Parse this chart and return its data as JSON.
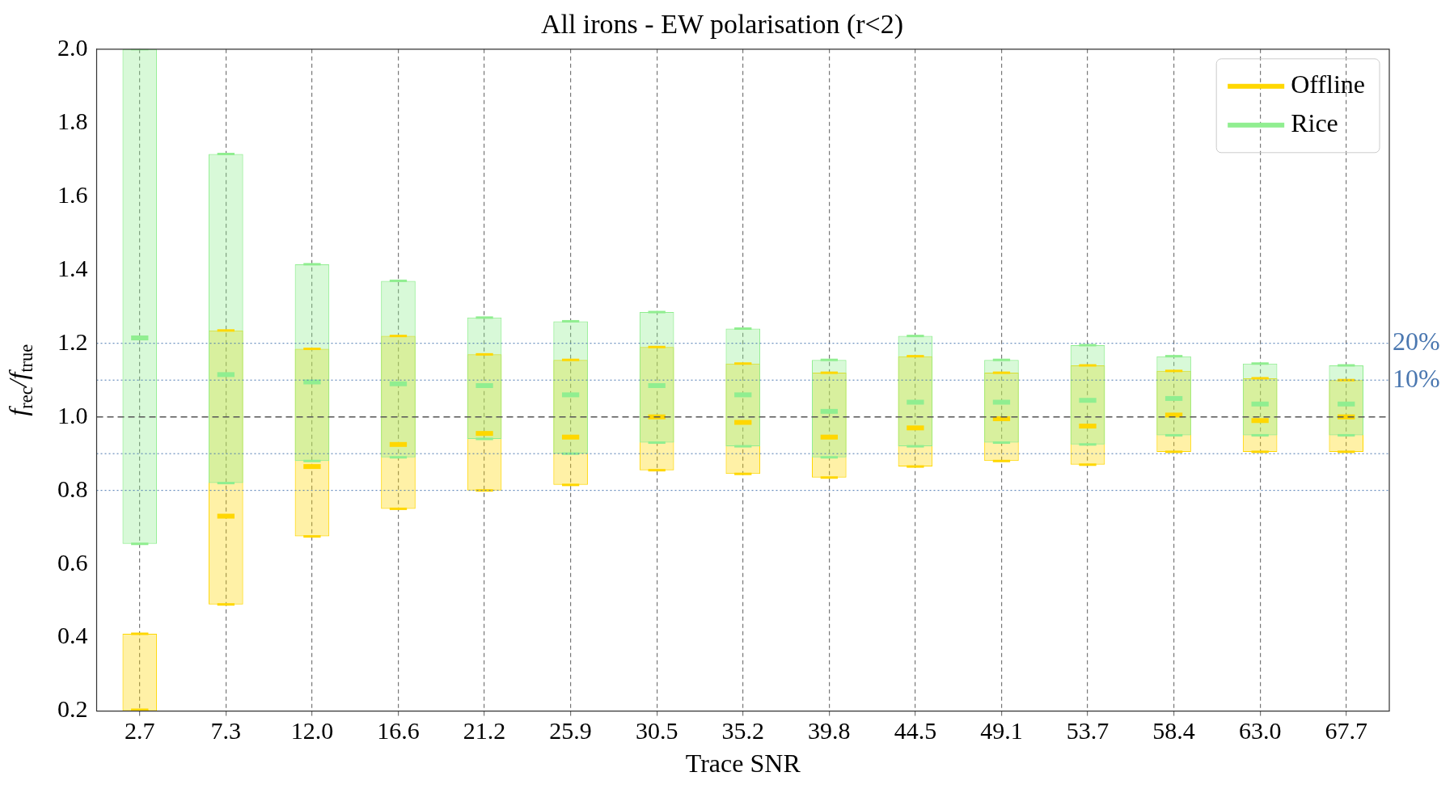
{
  "chart_data": {
    "type": "box",
    "title": "All irons - EW polarisation (r<2)",
    "xlabel": "Trace SNR",
    "ylabel": "f$_{rec}$/f$_{true}$",
    "categories": [
      "2.7",
      "7.3",
      "12.0",
      "16.6",
      "21.2",
      "25.9",
      "30.5",
      "35.2",
      "39.8",
      "44.5",
      "49.1",
      "53.7",
      "58.4",
      "63.0",
      "67.7"
    ],
    "ylim": [
      0.2,
      2.0
    ],
    "yticks": [
      0.2,
      0.4,
      0.6,
      0.8,
      {
        "value": 1.0,
        "label": "1.0"
      },
      1.2,
      1.4,
      1.6,
      1.8,
      {
        "value": 2.0,
        "label": "2.0"
      }
    ],
    "grid": "x",
    "legend": "top right",
    "series": [
      {
        "name": "Offline",
        "color": "#ffd700",
        "boxes": [
          {
            "low": 0.2,
            "q1": 0.2,
            "median": 0.2,
            "q3": 0.41,
            "high": 0.41
          },
          {
            "low": 0.49,
            "q1": 0.49,
            "median": 0.73,
            "q3": 1.235,
            "high": 1.235
          },
          {
            "low": 0.675,
            "q1": 0.675,
            "median": 0.865,
            "q3": 1.185,
            "high": 1.185
          },
          {
            "low": 0.75,
            "q1": 0.75,
            "median": 0.925,
            "q3": 1.22,
            "high": 1.22
          },
          {
            "low": 0.8,
            "q1": 0.8,
            "median": 0.955,
            "q3": 1.17,
            "high": 1.17
          },
          {
            "low": 0.815,
            "q1": 0.815,
            "median": 0.945,
            "q3": 1.155,
            "high": 1.155
          },
          {
            "low": 0.855,
            "q1": 0.855,
            "median": 1.0,
            "q3": 1.19,
            "high": 1.19
          },
          {
            "low": 0.845,
            "q1": 0.845,
            "median": 0.985,
            "q3": 1.145,
            "high": 1.145
          },
          {
            "low": 0.835,
            "q1": 0.835,
            "median": 0.945,
            "q3": 1.12,
            "high": 1.12
          },
          {
            "low": 0.865,
            "q1": 0.865,
            "median": 0.97,
            "q3": 1.165,
            "high": 1.165
          },
          {
            "low": 0.88,
            "q1": 0.88,
            "median": 0.995,
            "q3": 1.12,
            "high": 1.12
          },
          {
            "low": 0.87,
            "q1": 0.87,
            "median": 0.975,
            "q3": 1.14,
            "high": 1.14
          },
          {
            "low": 0.905,
            "q1": 0.905,
            "median": 1.005,
            "q3": 1.125,
            "high": 1.125
          },
          {
            "low": 0.905,
            "q1": 0.905,
            "median": 0.99,
            "q3": 1.105,
            "high": 1.105
          },
          {
            "low": 0.905,
            "q1": 0.905,
            "median": 1.0,
            "q3": 1.1,
            "high": 1.1
          }
        ]
      },
      {
        "name": "Rice",
        "color": "#90ee90",
        "boxes": [
          {
            "low": 0.655,
            "q1": 0.655,
            "median": 1.215,
            "q3": 2.0,
            "high": 2.0
          },
          {
            "low": 0.82,
            "q1": 0.82,
            "median": 1.115,
            "q3": 1.715,
            "high": 1.715
          },
          {
            "low": 0.88,
            "q1": 0.88,
            "median": 1.095,
            "q3": 1.415,
            "high": 1.415
          },
          {
            "low": 0.89,
            "q1": 0.89,
            "median": 1.09,
            "q3": 1.37,
            "high": 1.37
          },
          {
            "low": 0.94,
            "q1": 0.94,
            "median": 1.085,
            "q3": 1.27,
            "high": 1.27
          },
          {
            "low": 0.9,
            "q1": 0.9,
            "median": 1.06,
            "q3": 1.26,
            "high": 1.26
          },
          {
            "low": 0.93,
            "q1": 0.93,
            "median": 1.085,
            "q3": 1.285,
            "high": 1.285
          },
          {
            "low": 0.92,
            "q1": 0.92,
            "median": 1.06,
            "q3": 1.24,
            "high": 1.24
          },
          {
            "low": 0.89,
            "q1": 0.89,
            "median": 1.015,
            "q3": 1.155,
            "high": 1.155
          },
          {
            "low": 0.92,
            "q1": 0.92,
            "median": 1.04,
            "q3": 1.22,
            "high": 1.22
          },
          {
            "low": 0.93,
            "q1": 0.93,
            "median": 1.04,
            "q3": 1.155,
            "high": 1.155
          },
          {
            "low": 0.925,
            "q1": 0.925,
            "median": 1.045,
            "q3": 1.195,
            "high": 1.195
          },
          {
            "low": 0.95,
            "q1": 0.95,
            "median": 1.05,
            "q3": 1.165,
            "high": 1.165
          },
          {
            "low": 0.95,
            "q1": 0.95,
            "median": 1.035,
            "q3": 1.145,
            "high": 1.145
          },
          {
            "low": 0.95,
            "q1": 0.95,
            "median": 1.035,
            "q3": 1.14,
            "high": 1.14
          }
        ]
      }
    ],
    "ref_lines": [
      {
        "axis": "y",
        "value": 1.2,
        "color": "#4a77b0",
        "line_style": "dotted"
      },
      {
        "axis": "y",
        "value": 1.1,
        "color": "#4a77b0",
        "line_style": "dotted"
      },
      {
        "axis": "y",
        "value": 1.0,
        "color": "#555555",
        "line_style": "dashed"
      },
      {
        "axis": "y",
        "value": 0.9,
        "color": "#4a77b0",
        "line_style": "dotted"
      },
      {
        "axis": "y",
        "value": 0.8,
        "color": "#4a77b0",
        "line_style": "dotted"
      }
    ],
    "annotations": [
      "20%",
      "10%"
    ]
  }
}
